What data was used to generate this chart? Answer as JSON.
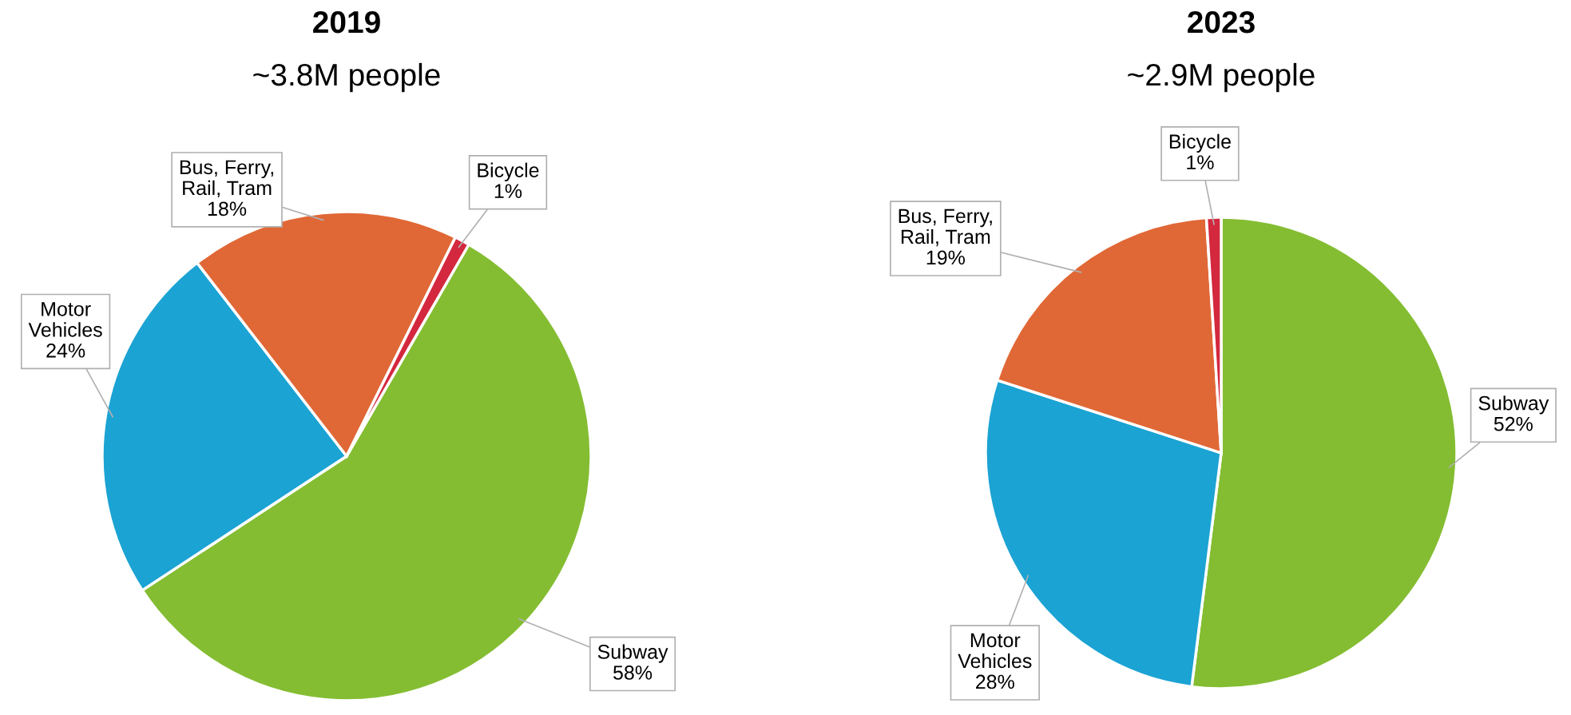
{
  "chart_data": [
    {
      "type": "pie",
      "title": "2019",
      "subtitle": "~3.8M people",
      "categories": [
        "Subway",
        "Motor\nVehicles",
        "Bus, Ferry,\nRail, Tram",
        "Bicycle"
      ],
      "values": [
        58,
        24,
        18,
        1
      ],
      "value_labels": [
        "58%",
        "24%",
        "18%",
        "1%"
      ],
      "colors": [
        "#84bd32",
        "#1ba3d3",
        "#e06836",
        "#d3283e"
      ]
    },
    {
      "type": "pie",
      "title": "2023",
      "subtitle": "~2.9M people",
      "categories": [
        "Subway",
        "Motor\nVehicles",
        "Bus, Ferry,\nRail, Tram",
        "Bicycle"
      ],
      "values": [
        52,
        28,
        19,
        1
      ],
      "value_labels": [
        "52%",
        "28%",
        "19%",
        "1%"
      ],
      "colors": [
        "#84bd32",
        "#1ba3d3",
        "#e06836",
        "#d3283e"
      ]
    }
  ]
}
